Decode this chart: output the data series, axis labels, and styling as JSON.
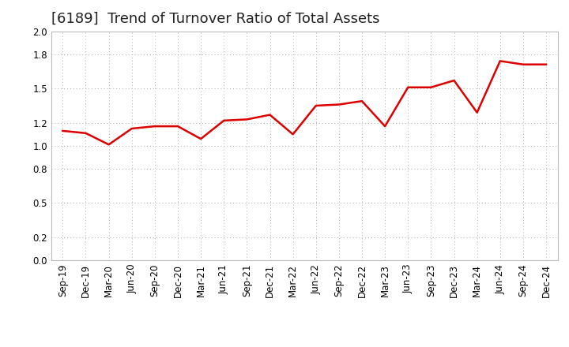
{
  "title": "[6189]  Trend of Turnover Ratio of Total Assets",
  "labels": [
    "Sep-19",
    "Dec-19",
    "Mar-20",
    "Jun-20",
    "Sep-20",
    "Dec-20",
    "Mar-21",
    "Jun-21",
    "Sep-21",
    "Dec-21",
    "Mar-22",
    "Jun-22",
    "Sep-22",
    "Dec-22",
    "Mar-23",
    "Jun-23",
    "Sep-23",
    "Dec-23",
    "Mar-24",
    "Jun-24",
    "Sep-24",
    "Dec-24"
  ],
  "values": [
    1.13,
    1.11,
    1.01,
    1.15,
    1.17,
    1.17,
    1.06,
    1.22,
    1.23,
    1.27,
    1.1,
    1.35,
    1.36,
    1.39,
    1.17,
    1.51,
    1.51,
    1.57,
    1.29,
    1.74,
    1.71,
    1.71
  ],
  "line_color": "#dd0000",
  "line_width": 1.8,
  "ylim": [
    0.0,
    2.0
  ],
  "yticks": [
    0.0,
    0.2,
    0.5,
    0.8,
    1.0,
    1.2,
    1.5,
    1.8,
    2.0
  ],
  "background_color": "#ffffff",
  "plot_bg_color": "#ffffff",
  "grid_color": "#aaaaaa",
  "title_fontsize": 13,
  "tick_fontsize": 8.5,
  "title_color": "#222222"
}
